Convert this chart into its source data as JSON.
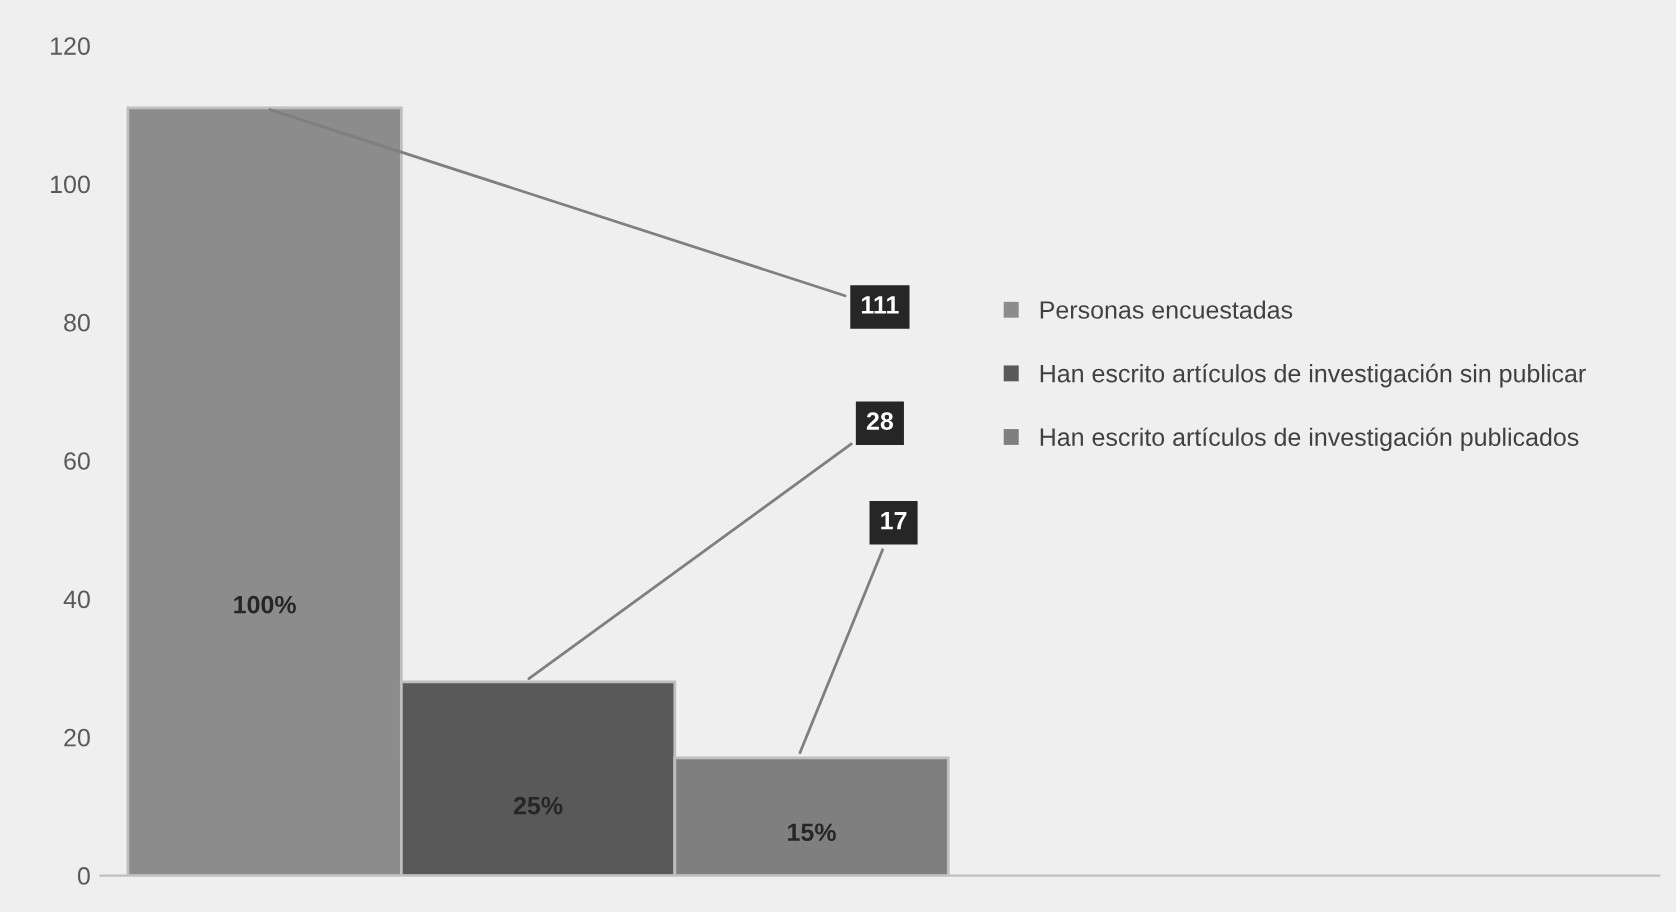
{
  "chart_data": {
    "type": "bar",
    "categories": [
      null,
      null,
      null
    ],
    "series": [
      {
        "name": "Personas encuestadas",
        "color": "#8c8c8c",
        "values": [
          111,
          null,
          null
        ]
      },
      {
        "name": "Han escrito artículos de investigación sin publicar",
        "color": "#595959",
        "values": [
          null,
          28,
          null
        ]
      },
      {
        "name": "Han escrito artículos de investigación publicados",
        "color": "#7f7f7f",
        "values": [
          null,
          null,
          17
        ]
      }
    ],
    "annotations": [
      "100%",
      "25%",
      "15%",
      "111",
      "28",
      "17"
    ],
    "ylim": [
      0,
      120
    ],
    "yticks": [
      0,
      20,
      40,
      60,
      80,
      100,
      120
    ],
    "stacked": true,
    "grid": false,
    "legend": "right"
  }
}
